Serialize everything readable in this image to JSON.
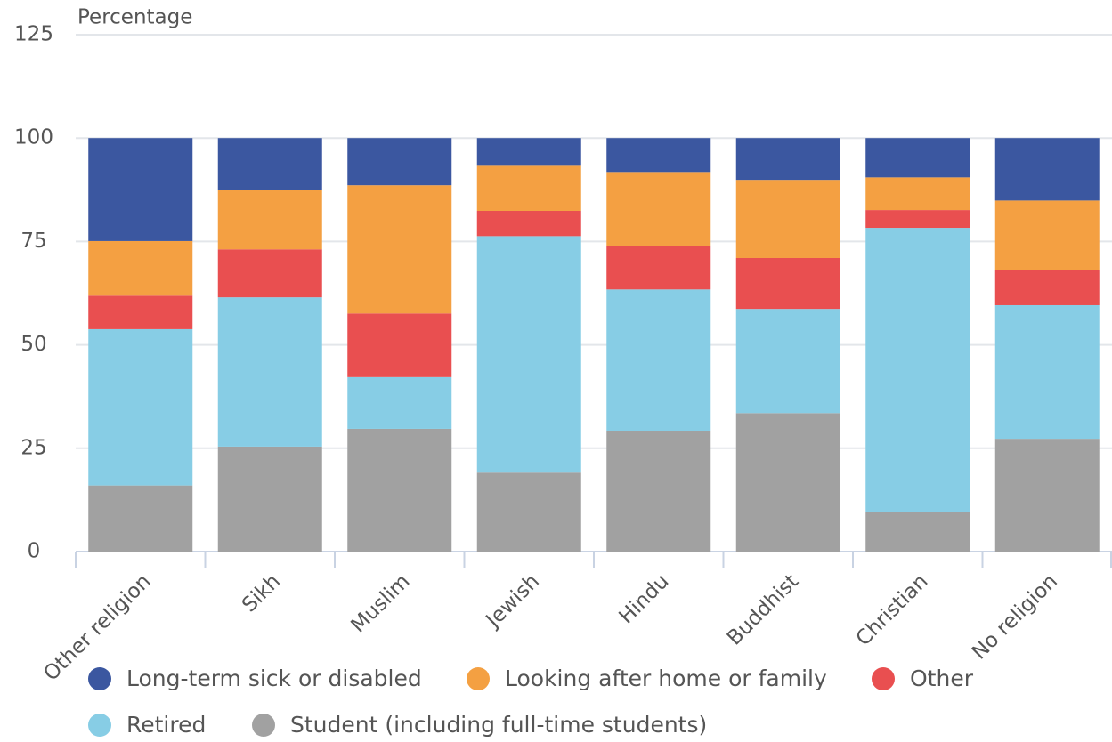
{
  "chart_data": {
    "type": "stacked_bar",
    "y_label": "Percentage",
    "categories": [
      "Other religion",
      "Sikh",
      "Muslim",
      "Jewish",
      "Hindu",
      "Buddhist",
      "Christian",
      "No religion"
    ],
    "series": [
      {
        "name": "Long-term sick or disabled",
        "color": "#3b57a0",
        "values": [
          24.9,
          12.5,
          11.4,
          6.7,
          8.2,
          10.1,
          9.5,
          15.1
        ]
      },
      {
        "name": "Looking after home or family",
        "color": "#f4a042",
        "values": [
          13.2,
          14.4,
          31.0,
          10.9,
          17.8,
          18.9,
          7.9,
          16.7
        ]
      },
      {
        "name": "Other",
        "color": "#e94f50",
        "values": [
          8.1,
          11.6,
          15.4,
          6.1,
          10.6,
          12.3,
          4.3,
          8.6
        ]
      },
      {
        "name": "Retired",
        "color": "#87cde5",
        "values": [
          37.8,
          36.1,
          12.5,
          57.2,
          34.2,
          25.2,
          68.8,
          32.3
        ]
      },
      {
        "name": "Student (including full-time students)",
        "color": "#a1a1a1",
        "values": [
          16.0,
          25.4,
          29.7,
          19.1,
          29.2,
          33.5,
          9.5,
          27.3
        ]
      }
    ],
    "stack_order": "bottom_up_reverse",
    "ylim": [
      0,
      125
    ],
    "yticks": [
      0,
      25,
      50,
      75,
      100,
      125
    ],
    "grid": true
  }
}
